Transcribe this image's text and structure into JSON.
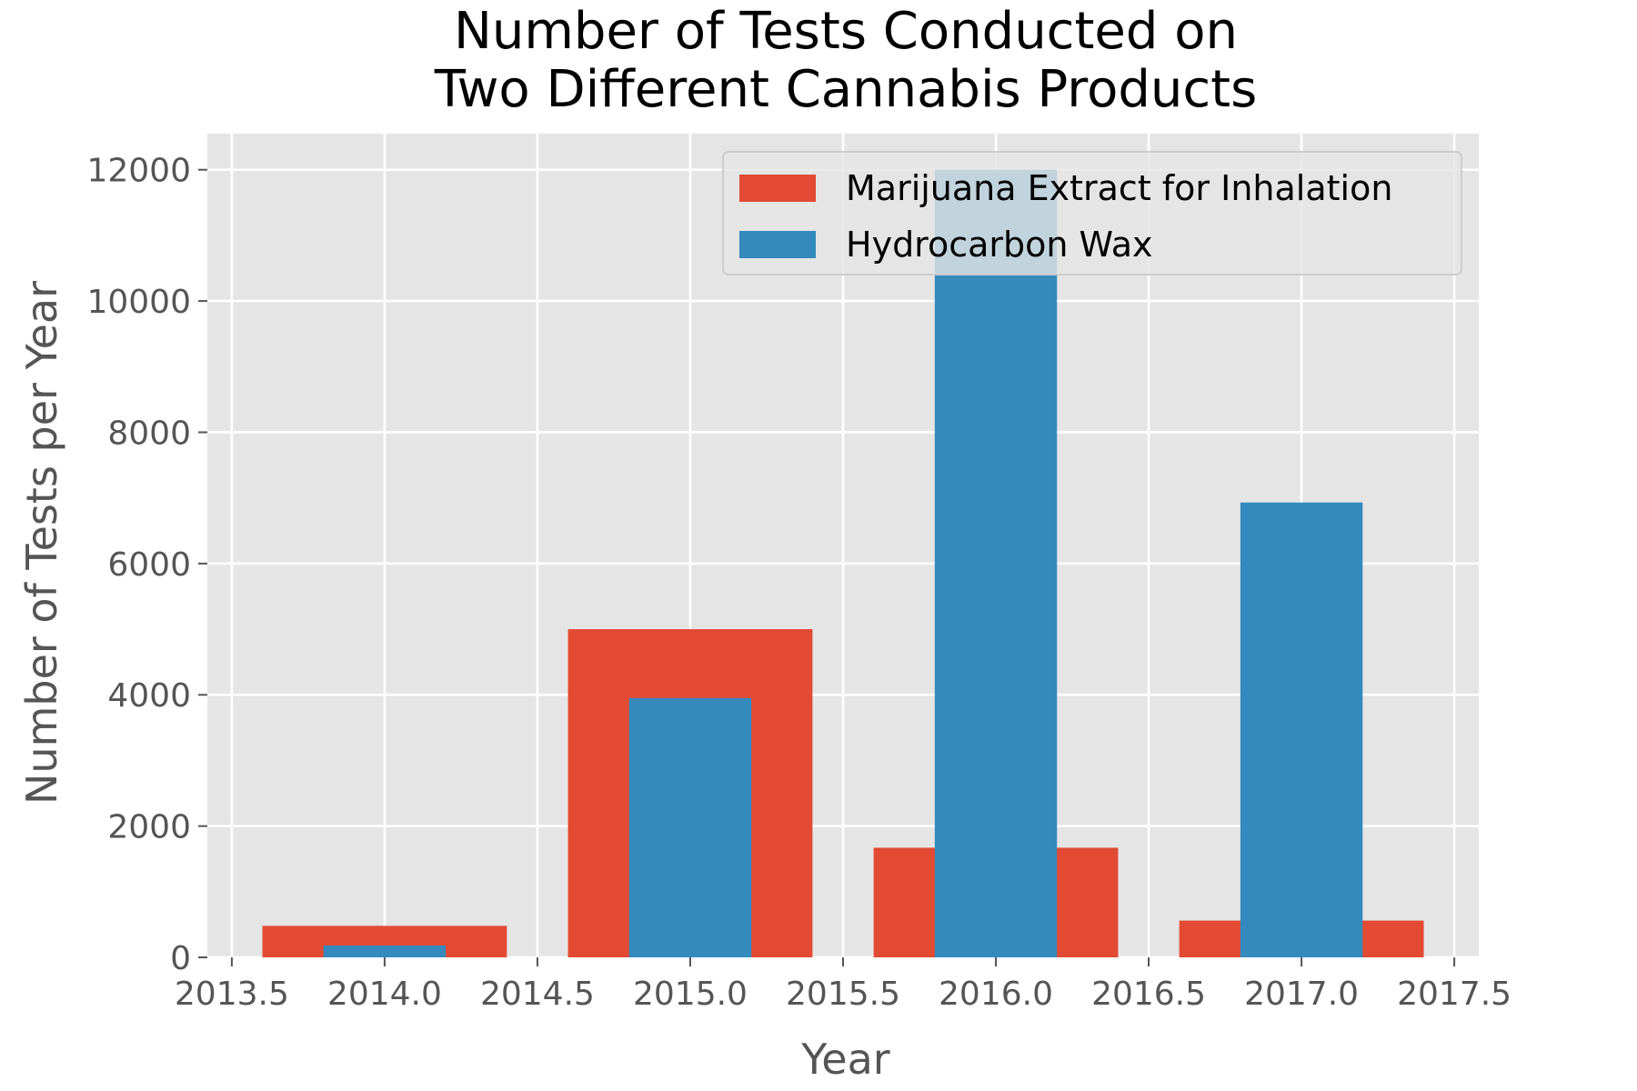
{
  "chart_data": {
    "type": "bar",
    "title_lines": [
      "Number of Tests Conducted on",
      "Two Different Cannabis Products"
    ],
    "xlabel": "Year",
    "ylabel": "Number of Tests per Year",
    "xlim": [
      2013.42,
      2017.58
    ],
    "ylim": [
      0,
      12550
    ],
    "xticks": [
      "2013.5",
      "2014.0",
      "2014.5",
      "2015.0",
      "2015.5",
      "2016.0",
      "2016.5",
      "2017.0",
      "2017.5"
    ],
    "xtick_values": [
      2013.5,
      2014.0,
      2014.5,
      2015.0,
      2015.5,
      2016.0,
      2016.5,
      2017.0,
      2017.5
    ],
    "yticks": [
      "0",
      "2000",
      "4000",
      "6000",
      "8000",
      "10000",
      "12000"
    ],
    "ytick_values": [
      0,
      2000,
      4000,
      6000,
      8000,
      10000,
      12000
    ],
    "grid": true,
    "legend_position": "top-right",
    "series": [
      {
        "name": "Marijuana Extract for Inhalation",
        "color": "#E24A33",
        "bar_width": 0.8,
        "x": [
          2014,
          2015,
          2016,
          2017
        ],
        "values": [
          480,
          5000,
          1670,
          560
        ]
      },
      {
        "name": "Hydrocarbon Wax",
        "color": "#348ABD",
        "bar_width": 0.4,
        "x": [
          2014,
          2015,
          2016,
          2017
        ],
        "values": [
          180,
          3950,
          12000,
          6930
        ]
      }
    ],
    "colors": {
      "plot_background": "#E5E5E5",
      "grid": "#FFFFFF"
    }
  }
}
